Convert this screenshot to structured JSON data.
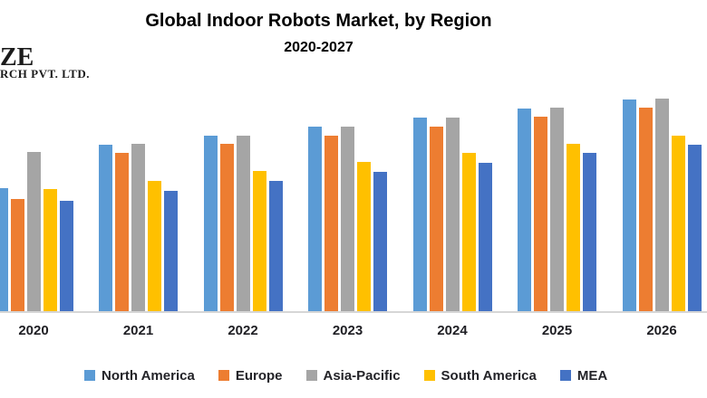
{
  "page": {
    "background": "#ffffff"
  },
  "logo": {
    "visible_fragment_line1": "ZE",
    "visible_fragment_line2": "RCH PVT. LTD.",
    "color": "#1b1b1b"
  },
  "chart_data": {
    "type": "bar",
    "title": "Global Indoor Robots Market, by Region",
    "subtitle": "2020-2027",
    "xlabel": "",
    "ylabel": "",
    "y_axis_visible": false,
    "grid": false,
    "values_unit": "relative height (no value axis shown in image)",
    "ylim": [
      0,
      250
    ],
    "legend_position": "bottom",
    "axis_line_color": "#d6d6d6",
    "tick_label_color": "#1f1f24",
    "categories": [
      "2020",
      "2021",
      "2022",
      "2023",
      "2024",
      "2025",
      "2026"
    ],
    "series": [
      {
        "name": "North America",
        "color": "#5B9BD5",
        "values": [
          136,
          184,
          194,
          204,
          214,
          224,
          234
        ]
      },
      {
        "name": "Europe",
        "color": "#ED7D31",
        "values": [
          124,
          175,
          185,
          194,
          204,
          215,
          225
        ]
      },
      {
        "name": "Asia-Pacific",
        "color": "#A5A5A5",
        "values": [
          176,
          185,
          194,
          204,
          214,
          225,
          235
        ]
      },
      {
        "name": "South America",
        "color": "#FFC000",
        "values": [
          135,
          144,
          155,
          165,
          175,
          185,
          194
        ]
      },
      {
        "name": "MEA",
        "color": "#4472C4",
        "values": [
          122,
          133,
          144,
          154,
          164,
          175,
          184
        ]
      }
    ],
    "notes": "Leftmost bar of 2020 group (North America) is clipped by the image edge; groups for 2027 are outside the visible area."
  }
}
